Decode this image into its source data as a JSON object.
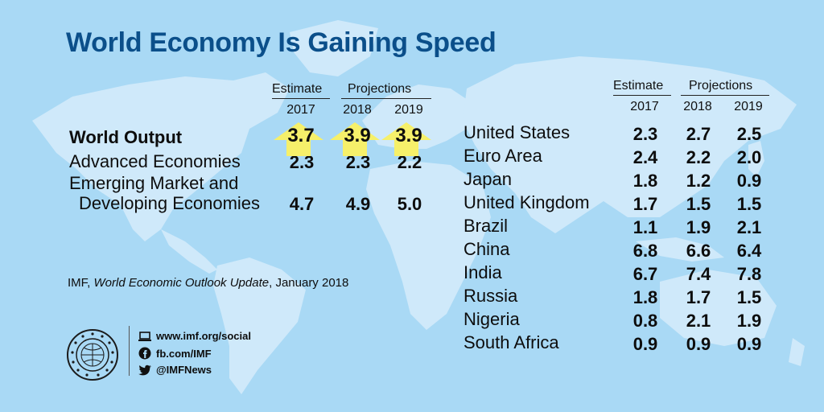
{
  "title": "World Economy Is Gaining Speed",
  "left_table": {
    "estimate_label": "Estimate",
    "projections_label": "Projections",
    "years": [
      "2017",
      "2018",
      "2019"
    ],
    "rows": [
      {
        "label": "World Output",
        "values": [
          "3.7",
          "3.9",
          "3.9"
        ]
      },
      {
        "label": "Advanced Economies",
        "values": [
          "2.3",
          "2.3",
          "2.2"
        ]
      },
      {
        "label_line1": "Emerging Market and",
        "label_line2": "Developing Economies",
        "values": [
          "4.7",
          "4.9",
          "5.0"
        ]
      }
    ]
  },
  "right_table": {
    "estimate_label": "Estimate",
    "projections_label": "Projections",
    "years": [
      "2017",
      "2018",
      "2019"
    ],
    "rows": [
      {
        "name": "United States",
        "values": [
          "2.3",
          "2.7",
          "2.5"
        ]
      },
      {
        "name": "Euro Area",
        "values": [
          "2.4",
          "2.2",
          "2.0"
        ]
      },
      {
        "name": "Japan",
        "values": [
          "1.8",
          "1.2",
          "0.9"
        ]
      },
      {
        "name": "United Kingdom",
        "values": [
          "1.7",
          "1.5",
          "1.5"
        ]
      },
      {
        "name": "Brazil",
        "values": [
          "1.1",
          "1.9",
          "2.1"
        ]
      },
      {
        "name": "China",
        "values": [
          "6.8",
          "6.6",
          "6.4"
        ]
      },
      {
        "name": "India",
        "values": [
          "6.7",
          "7.4",
          "7.8"
        ]
      },
      {
        "name": "Russia",
        "values": [
          "1.8",
          "1.7",
          "1.5"
        ]
      },
      {
        "name": "Nigeria",
        "values": [
          "0.8",
          "2.1",
          "1.9"
        ]
      },
      {
        "name": "South Africa",
        "values": [
          "0.9",
          "0.9",
          "0.9"
        ]
      }
    ]
  },
  "source": {
    "prefix": "IMF, ",
    "publication": "World Economic Outlook Update",
    "suffix": ", January 2018"
  },
  "social": {
    "web": "www.imf.org/social",
    "facebook": "fb.com/IMF",
    "twitter": "@IMFNews"
  },
  "seal_text": "INTERNATIONAL MONETARY FUND",
  "colors": {
    "background": "#a9d9f5",
    "land": "#cfe9fa",
    "title": "#0b4f8a",
    "arrow": "#f6f06a"
  },
  "icons": [
    "laptop-icon",
    "facebook-icon",
    "twitter-icon",
    "imf-seal-icon",
    "up-arrow-icon"
  ]
}
